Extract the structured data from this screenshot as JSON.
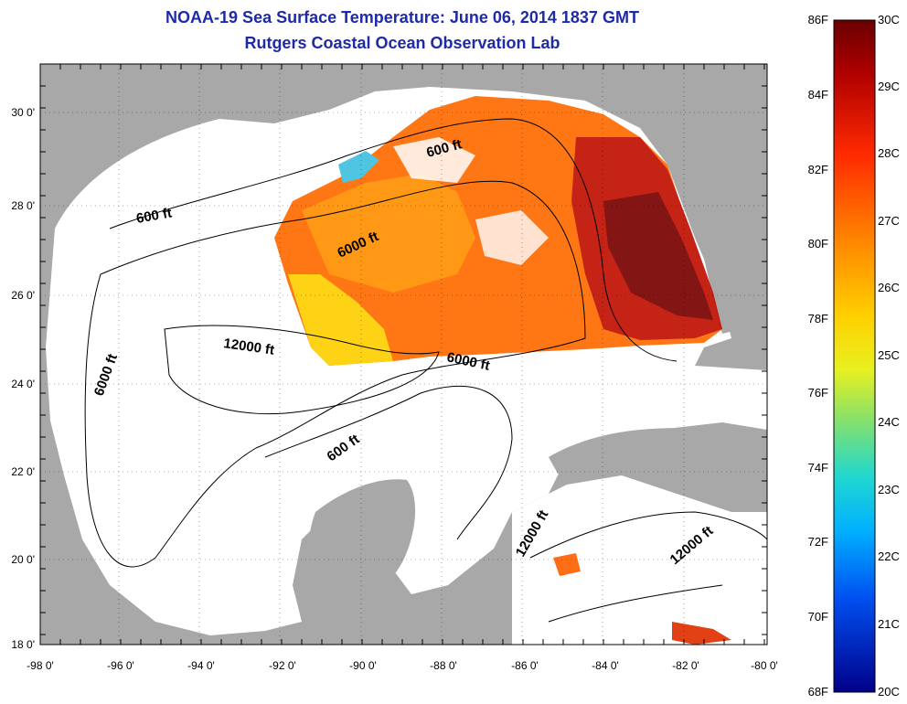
{
  "title": "NOAA-19 Sea Surface Temperature:  June 06, 2014 1837 GMT",
  "subtitle": "Rutgers Coastal Ocean Observation Lab",
  "axes": {
    "x_ticks": [
      "-98 0'",
      "-96 0'",
      "-94 0'",
      "-92 0'",
      "-90 0'",
      "-88 0'",
      "-86 0'",
      "-84 0'",
      "-82 0'",
      "-80 0'"
    ],
    "y_ticks": [
      "18 0'",
      "20 0'",
      "22 0'",
      "24 0'",
      "26 0'",
      "28 0'",
      "30 0'"
    ],
    "lon_range": [
      -98,
      -80
    ],
    "lat_range": [
      18,
      31
    ]
  },
  "contour_labels": [
    "600 ft",
    "600 ft",
    "6000 ft",
    "6000 ft",
    "12000 ft",
    "6000 ft",
    "600 ft",
    "12000 ft",
    "12000 ft"
  ],
  "colorbar": {
    "f_labels": [
      "86F",
      "84F",
      "82F",
      "80F",
      "78F",
      "76F",
      "74F",
      "72F",
      "70F",
      "68F"
    ],
    "c_labels": [
      "30C",
      "29C",
      "28C",
      "27C",
      "26C",
      "25C",
      "24C",
      "23C",
      "22C",
      "21C",
      "20C"
    ],
    "colors": [
      "#7a0000",
      "#c00000",
      "#ff2000",
      "#ff7000",
      "#ffb000",
      "#ffe000",
      "#c0f040",
      "#40e0a0",
      "#00d0ff",
      "#0080ff",
      "#0030e0",
      "#0000a0"
    ]
  },
  "colors": {
    "land": "#a8a8a8",
    "water": "#ffffff",
    "title": "#1f2aa8"
  }
}
